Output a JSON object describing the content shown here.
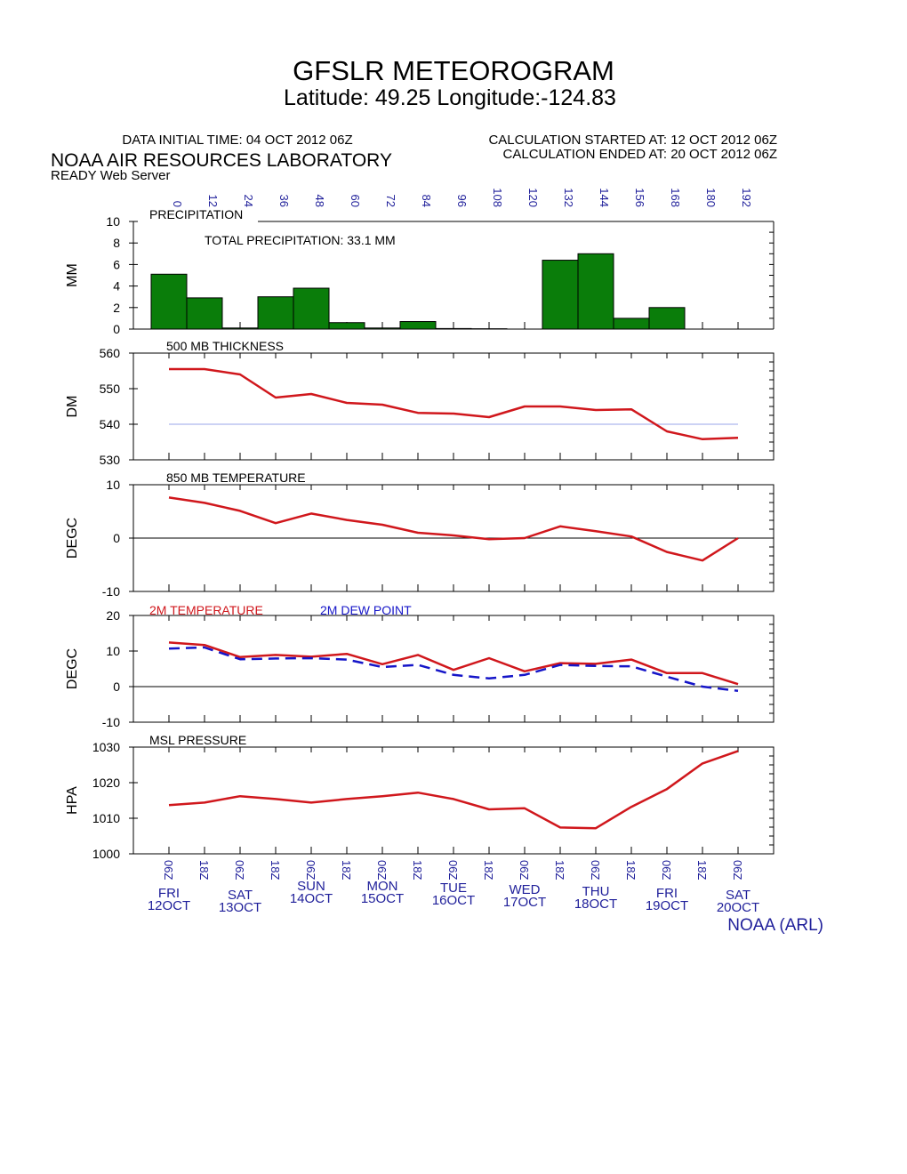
{
  "header": {
    "title": "GFSLR METEOROGRAM",
    "subtitle": "Latitude: 49.25 Longitude:-124.83",
    "init_time": "DATA INITIAL TIME: 04 OCT 2012 06Z",
    "calc_start": "CALCULATION STARTED AT: 12 OCT 2012 06Z",
    "calc_end": "CALCULATION ENDED AT: 20 OCT 2012 06Z",
    "lab": "NOAA AIR RESOURCES LABORATORY",
    "server": "READY Web Server",
    "footer": "NOAA (ARL)"
  },
  "colors": {
    "temp": "#d0171c",
    "dew": "#1515c8",
    "precip": "#0a7d0a",
    "precip_edge": "#000000",
    "ref": "#9aa6e8",
    "axis_text": "#1f1f9a"
  },
  "forecast_hours": [
    "0",
    "12",
    "24",
    "36",
    "48",
    "60",
    "72",
    "84",
    "96",
    "108",
    "120",
    "132",
    "144",
    "156",
    "168",
    "180",
    "192"
  ],
  "time_labels": [
    "06Z",
    "18Z",
    "06Z",
    "18Z",
    "06Z",
    "18Z",
    "06Z",
    "18Z",
    "06Z",
    "18Z",
    "06Z",
    "18Z",
    "06Z",
    "18Z",
    "06Z",
    "18Z",
    "06Z"
  ],
  "day_labels": [
    {
      "day": "FRI",
      "date": "12OCT"
    },
    {
      "day": "SAT",
      "date": "13OCT"
    },
    {
      "day": "SUN",
      "date": "14OCT"
    },
    {
      "day": "MON",
      "date": "15OCT"
    },
    {
      "day": "TUE",
      "date": "16OCT"
    },
    {
      "day": "WED",
      "date": "17OCT"
    },
    {
      "day": "THU",
      "date": "18OCT"
    },
    {
      "day": "FRI",
      "date": "19OCT"
    },
    {
      "day": "SAT",
      "date": "20OCT"
    }
  ],
  "chart_data": [
    {
      "type": "bar",
      "title": "PRECIPITATION",
      "annotation": "TOTAL PRECIPITATION:  33.1 MM",
      "ylabel": "MM",
      "ylim": [
        0,
        10
      ],
      "yticks": [
        "0",
        "2",
        "4",
        "6",
        "8",
        "10"
      ],
      "x": [
        0,
        12,
        24,
        36,
        48,
        60,
        72,
        84,
        96,
        108,
        120,
        132,
        144,
        156,
        168,
        180
      ],
      "values": [
        5.1,
        2.9,
        0.1,
        3.0,
        3.8,
        0.6,
        0.1,
        0.7,
        0.05,
        0.03,
        0.0,
        6.4,
        7.0,
        1.0,
        2.0,
        0.0
      ]
    },
    {
      "type": "line",
      "title": "500 MB  THICKNESS",
      "ylabel": "DM",
      "ylim": [
        530,
        560
      ],
      "yticks": [
        "530",
        "540",
        "550",
        "560"
      ],
      "reference": 540,
      "x": [
        0,
        12,
        24,
        36,
        48,
        60,
        72,
        84,
        96,
        108,
        120,
        132,
        144,
        156,
        168,
        180,
        192
      ],
      "series": [
        {
          "values": [
            555.5,
            555.5,
            554.0,
            547.5,
            548.5,
            546.0,
            545.5,
            543.2,
            543.0,
            542.0,
            545.0,
            545.0,
            544.0,
            544.2,
            538.0,
            535.8,
            536.2
          ]
        }
      ]
    },
    {
      "type": "line",
      "title": "850 MB  TEMPERATURE",
      "ylabel": "DEGC",
      "ylim": [
        -10,
        10
      ],
      "yticks": [
        "-10",
        "0",
        "10"
      ],
      "reference": 0,
      "x": [
        0,
        12,
        24,
        36,
        48,
        60,
        72,
        84,
        96,
        108,
        120,
        132,
        144,
        156,
        168,
        180,
        192
      ],
      "series": [
        {
          "values": [
            7.6,
            6.6,
            5.1,
            2.8,
            4.6,
            3.4,
            2.5,
            1.0,
            0.5,
            -0.2,
            0.0,
            2.2,
            1.3,
            0.3,
            -2.6,
            -4.2,
            0.0
          ]
        }
      ]
    },
    {
      "type": "line",
      "ylabel": "DEGC",
      "ylim": [
        -10,
        20
      ],
      "yticks": [
        "-10",
        "0",
        "10",
        "20"
      ],
      "reference": 0,
      "x": [
        0,
        12,
        24,
        36,
        48,
        60,
        72,
        84,
        96,
        108,
        120,
        132,
        144,
        156,
        168,
        180,
        192
      ],
      "series": [
        {
          "name": "2M TEMPERATURE",
          "style": "solid",
          "values": [
            12.4,
            11.7,
            8.3,
            8.9,
            8.4,
            9.2,
            6.3,
            8.9,
            4.7,
            8.0,
            4.3,
            6.6,
            6.4,
            7.6,
            3.8,
            3.8,
            0.7
          ]
        },
        {
          "name": "2M  DEW POINT",
          "style": "dashed",
          "values": [
            10.7,
            11.0,
            7.7,
            7.9,
            8.0,
            7.6,
            5.5,
            6.1,
            3.3,
            2.3,
            3.3,
            6.1,
            5.8,
            5.7,
            2.8,
            0.0,
            -1.2
          ]
        }
      ]
    },
    {
      "type": "line",
      "title": "MSL PRESSURE",
      "ylabel": "HPA",
      "ylim": [
        1000,
        1030
      ],
      "yticks": [
        "1000",
        "1010",
        "1020",
        "1030"
      ],
      "x": [
        0,
        12,
        24,
        36,
        48,
        60,
        72,
        84,
        96,
        108,
        120,
        132,
        144,
        156,
        168,
        180,
        192
      ],
      "series": [
        {
          "values": [
            1013.7,
            1014.4,
            1016.2,
            1015.4,
            1014.4,
            1015.4,
            1016.2,
            1017.2,
            1015.4,
            1012.5,
            1012.8,
            1007.4,
            1007.2,
            1013.2,
            1018.2,
            1025.4,
            1028.9
          ]
        }
      ]
    }
  ]
}
